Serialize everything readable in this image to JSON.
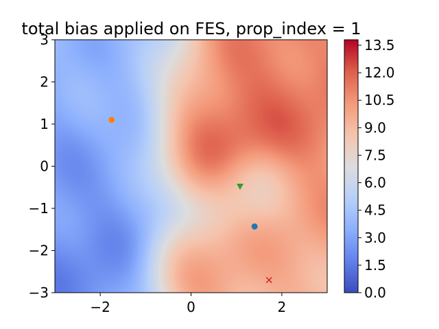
{
  "chart_data": {
    "type": "heatmap",
    "title": "total bias applied on FES, prop_index = 1",
    "xlim": [
      -3,
      3
    ],
    "ylim": [
      -3,
      3
    ],
    "xticks": [
      -2,
      0,
      2
    ],
    "xtick_labels": [
      "−2",
      "0",
      "2"
    ],
    "yticks": [
      -3,
      -2,
      -1,
      0,
      1,
      2,
      3
    ],
    "ytick_labels": [
      "−3",
      "−2",
      "−1",
      "0",
      "1",
      "2",
      "3"
    ],
    "colorbar": {
      "colormap": "coolwarm",
      "range": [
        0.0,
        13.8
      ],
      "ticks": [
        0.0,
        1.5,
        3.0,
        4.5,
        6.0,
        7.5,
        9.0,
        10.5,
        12.0,
        13.5
      ],
      "tick_labels": [
        "0.0",
        "1.5",
        "3.0",
        "4.5",
        "6.0",
        "7.5",
        "9.0",
        "10.5",
        "12.0",
        "13.5"
      ]
    },
    "field_hotspots": [
      {
        "x": 0.4,
        "y": 0.7,
        "value": 13.6,
        "spread": 0.9
      },
      {
        "x": 1.0,
        "y": 1.5,
        "value": 12.0,
        "spread": 1.0
      },
      {
        "x": 2.3,
        "y": 1.2,
        "value": 11.8,
        "spread": 1.1
      },
      {
        "x": 2.5,
        "y": -0.6,
        "value": 10.5,
        "spread": 0.6
      },
      {
        "x": 0.0,
        "y": -2.4,
        "value": 11.5,
        "spread": 0.7
      },
      {
        "x": 1.8,
        "y": -2.0,
        "value": 9.5,
        "spread": 1.0
      },
      {
        "x": -2.3,
        "y": -1.8,
        "value": 1.2,
        "spread": 1.4
      },
      {
        "x": -2.5,
        "y": 0.5,
        "value": 3.0,
        "spread": 1.3
      },
      {
        "x": -1.3,
        "y": 2.0,
        "value": 3.5,
        "spread": 1.0
      },
      {
        "x": 1.3,
        "y": -0.5,
        "value": 5.5,
        "spread": 0.6
      }
    ],
    "markers": [
      {
        "x": -1.75,
        "y": 1.1,
        "shape": "circle",
        "color": "#ff7f0e"
      },
      {
        "x": 1.4,
        "y": -1.43,
        "shape": "circle",
        "color": "#1f77b4"
      },
      {
        "x": 1.08,
        "y": -0.48,
        "shape": "triangle_down",
        "color": "#2ca02c"
      },
      {
        "x": 1.72,
        "y": -2.7,
        "shape": "x",
        "color": "#d62728"
      }
    ]
  }
}
